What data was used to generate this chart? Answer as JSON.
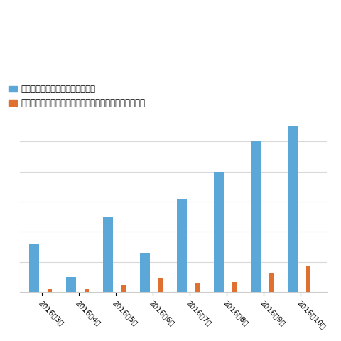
{
  "categories": [
    "2016年3月",
    "2016年4月",
    "2016年5月",
    "2016年6月",
    "2016年7月",
    "2016年8月",
    "2016年9月",
    "2016年10月"
  ],
  "blue_values": [
    32,
    10,
    50,
    26,
    62,
    80,
    100,
    110
  ],
  "orange_values": [
    2,
    2,
    5,
    9,
    6,
    7,
    13,
    17
  ],
  "blue_color": "#5BA8D8",
  "orange_color": "#E07030",
  "legend_blue": "ランサムウェア感染を狙うメール",
  "legend_orange": "ランサムウェアやその他のマルウェア感染を狙うメール",
  "background_color": "#ffffff",
  "grid_color": "#d8d8d8",
  "blue_bar_width": 0.28,
  "orange_bar_width": 0.12,
  "ylim": [
    0,
    115
  ],
  "figsize": [
    4.8,
    4.8
  ],
  "dpi": 100
}
